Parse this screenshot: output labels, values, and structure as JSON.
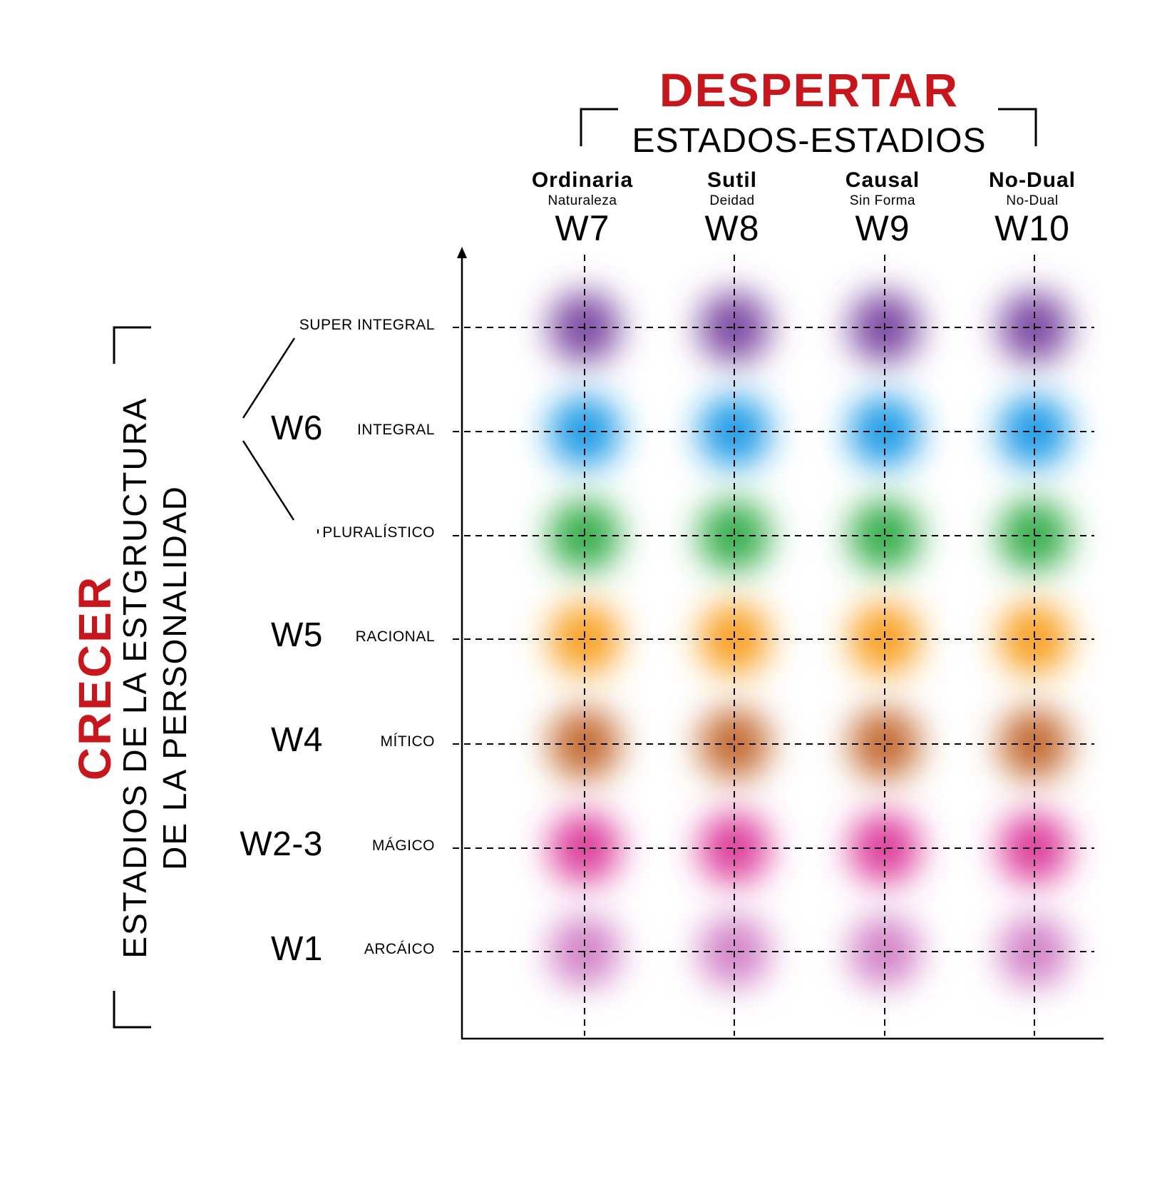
{
  "colors": {
    "accent": "#c8161d",
    "ink": "#000000"
  },
  "header": {
    "title": "DESPERTAR",
    "subtitle": "ESTADOS-ESTADIOS"
  },
  "side": {
    "title": "CRECER",
    "subtitle_line1": "ESTADIOS DE LA ESTGRUCTURA",
    "subtitle_line2": "DE LA PERSONALIDAD"
  },
  "columns": [
    {
      "state": "Ordinaria",
      "descriptor": "Naturaleza",
      "code": "W7"
    },
    {
      "state": "Sutil",
      "descriptor": "Deidad",
      "code": "W8"
    },
    {
      "state": "Causal",
      "descriptor": "Sin Forma",
      "code": "W9"
    },
    {
      "state": "No-Dual",
      "descriptor": "No-Dual",
      "code": "W10"
    }
  ],
  "rows": [
    {
      "label": "SUPER INTEGRAL",
      "color": "#7d4aa3"
    },
    {
      "label": "INTEGRAL",
      "color": "#1a9be6"
    },
    {
      "label": "PLURALÍSTICO",
      "color": "#35ad4c"
    },
    {
      "label": "RACIONAL",
      "color": "#f8a022"
    },
    {
      "label": "MÍTICO",
      "color": "#c46a30"
    },
    {
      "label": "MÁGICO",
      "color": "#dd3d9c"
    },
    {
      "label": "ARCÁICO",
      "color": "#d382c8"
    }
  ],
  "w_levels": [
    {
      "code": "W6"
    },
    {
      "code": "W5"
    },
    {
      "code": "W4"
    },
    {
      "code": "W2-3"
    },
    {
      "code": "W1"
    }
  ]
}
